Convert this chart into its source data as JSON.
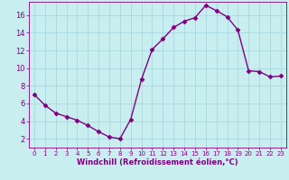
{
  "x": [
    0,
    1,
    2,
    3,
    4,
    5,
    6,
    7,
    8,
    9,
    10,
    11,
    12,
    13,
    14,
    15,
    16,
    17,
    18,
    19,
    20,
    21,
    22,
    23
  ],
  "y": [
    7.0,
    5.8,
    4.9,
    4.5,
    4.1,
    3.5,
    2.8,
    2.2,
    2.0,
    4.2,
    8.7,
    12.1,
    13.3,
    14.6,
    15.3,
    15.7,
    17.1,
    16.5,
    15.8,
    14.3,
    9.7,
    9.6,
    9.0,
    9.1
  ],
  "line_color": "#800080",
  "marker": "D",
  "marker_size": 2.5,
  "background_color": "#c8eef0",
  "grid_color": "#a8d8e0",
  "xlabel": "Windchill (Refroidissement éolien,°C)",
  "xlim": [
    -0.5,
    23.5
  ],
  "ylim": [
    1.0,
    17.5
  ],
  "xticks": [
    0,
    1,
    2,
    3,
    4,
    5,
    6,
    7,
    8,
    9,
    10,
    11,
    12,
    13,
    14,
    15,
    16,
    17,
    18,
    19,
    20,
    21,
    22,
    23
  ],
  "yticks": [
    2,
    4,
    6,
    8,
    10,
    12,
    14,
    16
  ],
  "tick_color": "#800080",
  "label_color": "#800080",
  "linewidth": 1.0,
  "xtick_fontsize": 5.0,
  "ytick_fontsize": 6.0,
  "xlabel_fontsize": 6.0
}
